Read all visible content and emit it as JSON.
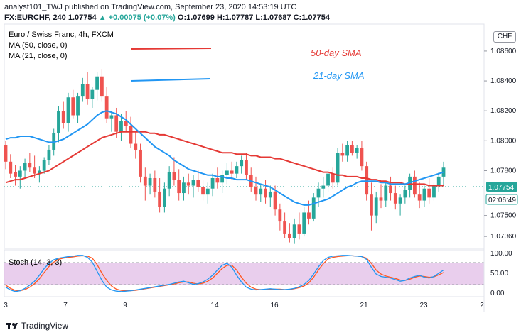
{
  "header": {
    "author": "analyst101_TWJ",
    "published": "published on TradingView.com, September 23, 2020 14:53:19 UTC"
  },
  "quote": {
    "symbol": "FX:EURCHF, 240",
    "last": "1.07754",
    "change": "▲ +0.00075 (+0.07%)",
    "o_label": "O:",
    "o": "1.07699",
    "h_label": "H:",
    "h": "1.07787",
    "l_label": "L:",
    "l": "1.07687",
    "c_label": "C:",
    "c": "1.07754"
  },
  "legend": {
    "instrument": "Euro / Swiss Franc, 4h, FXCM",
    "ma50": "MA (50, close, 0)",
    "ma21": "MA (21, close, 0)"
  },
  "annotations": {
    "sma50": "50-day SMA",
    "sma21": "21-day SMA"
  },
  "currency_badge": "CHF",
  "price_labels": {
    "last": "1.07754",
    "countdown": "02:06:49"
  },
  "stoch_label": "Stoch (14, 3, 3)",
  "footer": "TradingView",
  "colors": {
    "up": "#26a69a",
    "down": "#ef5350",
    "ma50": "#e53935",
    "ma21": "#2196f3",
    "stoch_k": "#2196f3",
    "stoch_d": "#ff5722",
    "stoch_band": "#e1bee7"
  },
  "chart_data": [
    {
      "type": "candlestick",
      "title": "Euro / Swiss Franc, 4h, FXCM",
      "x_tick_labels": [
        "3",
        "7",
        "9",
        "14",
        "16",
        "21",
        "23",
        "2"
      ],
      "y_tick_labels": [
        "1.08600",
        "1.08400",
        "1.08200",
        "1.08000",
        "1.07800",
        "1.07500",
        "1.07360"
      ],
      "ylim": [
        1.0728,
        1.0878
      ],
      "candles": [
        [
          1.0797,
          1.08,
          1.0781,
          1.0786
        ],
        [
          1.0786,
          1.0791,
          1.0775,
          1.0778
        ],
        [
          1.0779,
          1.0784,
          1.077,
          1.0776
        ],
        [
          1.0776,
          1.0783,
          1.0768,
          1.078
        ],
        [
          1.078,
          1.0788,
          1.0775,
          1.0785
        ],
        [
          1.0785,
          1.0792,
          1.0779,
          1.0782
        ],
        [
          1.0782,
          1.079,
          1.0775,
          1.0778
        ],
        [
          1.0778,
          1.0783,
          1.0772,
          1.078
        ],
        [
          1.078,
          1.0789,
          1.0778,
          1.0787
        ],
        [
          1.0787,
          1.0797,
          1.0784,
          1.0794
        ],
        [
          1.0794,
          1.0808,
          1.079,
          1.0805
        ],
        [
          1.0805,
          1.0823,
          1.0799,
          1.082
        ],
        [
          1.082,
          1.0826,
          1.0808,
          1.0812
        ],
        [
          1.0812,
          1.0832,
          1.0806,
          1.0829
        ],
        [
          1.0829,
          1.0834,
          1.0815,
          1.0817
        ],
        [
          1.0817,
          1.0832,
          1.0812,
          1.083
        ],
        [
          1.083,
          1.0842,
          1.0826,
          1.0838
        ],
        [
          1.0838,
          1.0846,
          1.0824,
          1.0828
        ],
        [
          1.0828,
          1.0836,
          1.0822,
          1.0834
        ],
        [
          1.0834,
          1.0846,
          1.0827,
          1.0843
        ],
        [
          1.0843,
          1.0848,
          1.0826,
          1.083
        ],
        [
          1.083,
          1.0836,
          1.0812,
          1.0815
        ],
        [
          1.0815,
          1.082,
          1.0806,
          1.0817
        ],
        [
          1.0817,
          1.0822,
          1.0802,
          1.0806
        ],
        [
          1.0806,
          1.0818,
          1.08,
          1.0813
        ],
        [
          1.0813,
          1.082,
          1.0806,
          1.081
        ],
        [
          1.081,
          1.0816,
          1.0795,
          1.0798
        ],
        [
          1.0798,
          1.0806,
          1.0788,
          1.0794
        ],
        [
          1.0794,
          1.0798,
          1.0772,
          1.0776
        ],
        [
          1.0776,
          1.0782,
          1.076,
          1.077
        ],
        [
          1.077,
          1.0778,
          1.0764,
          1.0775
        ],
        [
          1.0775,
          1.078,
          1.0762,
          1.0766
        ],
        [
          1.0766,
          1.0775,
          1.0752,
          1.0756
        ],
        [
          1.0756,
          1.0772,
          1.0752,
          1.0768
        ],
        [
          1.0768,
          1.0783,
          1.0763,
          1.0779
        ],
        [
          1.0779,
          1.0789,
          1.077,
          1.0774
        ],
        [
          1.0774,
          1.0781,
          1.076,
          1.0765
        ],
        [
          1.0765,
          1.0776,
          1.076,
          1.0772
        ],
        [
          1.0772,
          1.0778,
          1.0764,
          1.077
        ],
        [
          1.077,
          1.0777,
          1.0762,
          1.0774
        ],
        [
          1.0774,
          1.078,
          1.0766,
          1.0769
        ],
        [
          1.0769,
          1.0774,
          1.076,
          1.0764
        ],
        [
          1.0764,
          1.0772,
          1.0758,
          1.0768
        ],
        [
          1.0768,
          1.0778,
          1.0763,
          1.0775
        ],
        [
          1.0775,
          1.0782,
          1.0768,
          1.0772
        ],
        [
          1.0772,
          1.078,
          1.0765,
          1.0777
        ],
        [
          1.0777,
          1.0785,
          1.0771,
          1.078
        ],
        [
          1.078,
          1.0786,
          1.0774,
          1.0778
        ],
        [
          1.0778,
          1.0786,
          1.0775,
          1.0783
        ],
        [
          1.0783,
          1.079,
          1.0778,
          1.0787
        ],
        [
          1.0787,
          1.0792,
          1.0774,
          1.0777
        ],
        [
          1.0777,
          1.0782,
          1.0766,
          1.0769
        ],
        [
          1.0769,
          1.0776,
          1.076,
          1.0764
        ],
        [
          1.0764,
          1.0771,
          1.0759,
          1.0768
        ],
        [
          1.0768,
          1.0774,
          1.0758,
          1.0762
        ],
        [
          1.0762,
          1.077,
          1.0756,
          1.0766
        ],
        [
          1.0766,
          1.077,
          1.075,
          1.0754
        ],
        [
          1.0754,
          1.0758,
          1.074,
          1.0746
        ],
        [
          1.0746,
          1.0752,
          1.0735,
          1.0738
        ],
        [
          1.0738,
          1.0745,
          1.0732,
          1.0735
        ],
        [
          1.0735,
          1.0748,
          1.0731,
          1.0744
        ],
        [
          1.0744,
          1.0752,
          1.0734,
          1.0738
        ],
        [
          1.0738,
          1.0756,
          1.0736,
          1.0752
        ],
        [
          1.0752,
          1.076,
          1.0744,
          1.0748
        ],
        [
          1.0748,
          1.0765,
          1.0746,
          1.0762
        ],
        [
          1.0762,
          1.0772,
          1.0756,
          1.0768
        ],
        [
          1.0768,
          1.0776,
          1.0762,
          1.077
        ],
        [
          1.077,
          1.0781,
          1.0766,
          1.0778
        ],
        [
          1.0778,
          1.0782,
          1.0768,
          1.0772
        ],
        [
          1.0772,
          1.0795,
          1.077,
          1.0792
        ],
        [
          1.0792,
          1.0798,
          1.0786,
          1.079
        ],
        [
          1.079,
          1.08,
          1.0786,
          1.0797
        ],
        [
          1.0797,
          1.08,
          1.079,
          1.0792
        ],
        [
          1.0792,
          1.0797,
          1.0788,
          1.0795
        ],
        [
          1.0795,
          1.08,
          1.078,
          1.0783
        ],
        [
          1.0783,
          1.0786,
          1.076,
          1.0764
        ],
        [
          1.0764,
          1.0772,
          1.074,
          1.075
        ],
        [
          1.075,
          1.0766,
          1.0745,
          1.0762
        ],
        [
          1.0762,
          1.0771,
          1.0755,
          1.076
        ],
        [
          1.076,
          1.0773,
          1.0756,
          1.077
        ],
        [
          1.077,
          1.0776,
          1.076,
          1.0765
        ],
        [
          1.0765,
          1.077,
          1.0754,
          1.0758
        ],
        [
          1.0758,
          1.0764,
          1.075,
          1.0762
        ],
        [
          1.0762,
          1.077,
          1.0758,
          1.0767
        ],
        [
          1.0767,
          1.0778,
          1.0762,
          1.0776
        ],
        [
          1.0776,
          1.078,
          1.0762,
          1.0764
        ],
        [
          1.0764,
          1.0772,
          1.0755,
          1.076
        ],
        [
          1.076,
          1.077,
          1.0756,
          1.0768
        ],
        [
          1.0768,
          1.0775,
          1.0758,
          1.0762
        ],
        [
          1.0762,
          1.0772,
          1.076,
          1.077
        ],
        [
          1.077,
          1.0779,
          1.0766,
          1.0776
        ],
        [
          1.0776,
          1.0786,
          1.077,
          1.0782
        ]
      ],
      "ma50": [
        1.0772,
        1.0773,
        1.0774,
        1.0774,
        1.0775,
        1.0776,
        1.0777,
        1.0778,
        1.0779,
        1.078,
        1.0782,
        1.0784,
        1.0786,
        1.0788,
        1.079,
        1.0792,
        1.0794,
        1.0796,
        1.0798,
        1.08,
        1.0802,
        1.0803,
        1.0804,
        1.0805,
        1.0806,
        1.0806,
        1.0806,
        1.0806,
        1.0806,
        1.0806,
        1.0805,
        1.0805,
        1.0804,
        1.0804,
        1.0803,
        1.0802,
        1.0801,
        1.08,
        1.0799,
        1.0798,
        1.0797,
        1.0796,
        1.0795,
        1.0794,
        1.0793,
        1.0792,
        1.0792,
        1.0792,
        1.0791,
        1.0791,
        1.0791,
        1.079,
        1.079,
        1.0789,
        1.0789,
        1.0789,
        1.0788,
        1.0788,
        1.0787,
        1.0786,
        1.0785,
        1.0784,
        1.0783,
        1.0782,
        1.0781,
        1.078,
        1.0779,
        1.0779,
        1.0778,
        1.0777,
        1.0777,
        1.0776,
        1.0776,
        1.0776,
        1.0775,
        1.0775,
        1.0774,
        1.0774,
        1.0773,
        1.0773,
        1.0772,
        1.0772,
        1.0772,
        1.0771,
        1.0771,
        1.0771,
        1.0771,
        1.0771,
        1.077,
        1.077,
        1.077,
        1.077
      ],
      "ma21": [
        1.0801,
        1.0802,
        1.0802,
        1.0803,
        1.0803,
        1.0803,
        1.0802,
        1.0801,
        1.08,
        1.0799,
        1.0799,
        1.08,
        1.0801,
        1.0803,
        1.0805,
        1.0807,
        1.0809,
        1.0811,
        1.0814,
        1.0817,
        1.0819,
        1.082,
        1.0819,
        1.0818,
        1.0816,
        1.0814,
        1.0811,
        1.0808,
        1.0805,
        1.0802,
        1.0799,
        1.0796,
        1.0794,
        1.0792,
        1.079,
        1.0787,
        1.0785,
        1.0783,
        1.0781,
        1.078,
        1.0779,
        1.0778,
        1.0777,
        1.0777,
        1.0776,
        1.0776,
        1.0775,
        1.0775,
        1.0774,
        1.0774,
        1.0774,
        1.0773,
        1.0772,
        1.0771,
        1.077,
        1.0769,
        1.0767,
        1.0765,
        1.0763,
        1.0761,
        1.0759,
        1.0758,
        1.0757,
        1.0757,
        1.0758,
        1.0759,
        1.076,
        1.0761,
        1.0763,
        1.0765,
        1.0767,
        1.0769,
        1.077,
        1.0772,
        1.0773,
        1.0773,
        1.0773,
        1.0773,
        1.0772,
        1.0772,
        1.0771,
        1.0771,
        1.0771,
        1.0771,
        1.0772,
        1.0773,
        1.0774,
        1.0775,
        1.0776,
        1.0777,
        1.0778,
        1.0779
      ]
    },
    {
      "type": "line",
      "title": "Stoch (14, 3, 3)",
      "y_tick_labels": [
        "100.00",
        "50.00",
        "0.00"
      ],
      "ylim": [
        0,
        100
      ],
      "bands": [
        20,
        80
      ],
      "series": [
        {
          "name": "%K",
          "values": [
            15,
            8,
            4,
            6,
            12,
            20,
            30,
            45,
            62,
            75,
            84,
            88,
            90,
            92,
            93,
            95,
            95,
            90,
            78,
            55,
            32,
            15,
            8,
            5,
            4,
            5,
            6,
            8,
            10,
            12,
            14,
            16,
            18,
            20,
            22,
            25,
            28,
            30,
            26,
            22,
            24,
            28,
            35,
            45,
            58,
            70,
            75,
            65,
            45,
            28,
            15,
            10,
            8,
            9,
            10,
            11,
            10,
            9,
            9,
            10,
            12,
            16,
            22,
            32,
            48,
            66,
            82,
            90,
            93,
            94,
            95,
            95,
            94,
            93,
            92,
            85,
            65,
            48,
            42,
            40,
            38,
            34,
            30,
            32,
            38,
            42,
            45,
            40,
            38,
            42,
            50,
            58
          ]
        },
        {
          "name": "%D",
          "values": [
            20,
            12,
            7,
            6,
            9,
            15,
            24,
            36,
            52,
            67,
            78,
            85,
            88,
            90,
            91,
            93,
            94,
            93,
            88,
            72,
            50,
            32,
            18,
            10,
            7,
            6,
            6,
            7,
            9,
            11,
            13,
            15,
            17,
            19,
            21,
            23,
            26,
            28,
            28,
            25,
            23,
            25,
            30,
            38,
            50,
            62,
            70,
            70,
            58,
            40,
            25,
            15,
            10,
            9,
            9,
            10,
            10,
            10,
            9,
            9,
            11,
            14,
            18,
            26,
            40,
            58,
            74,
            86,
            90,
            92,
            93,
            94,
            94,
            93,
            92,
            88,
            75,
            58,
            48,
            43,
            40,
            37,
            33,
            32,
            35,
            40,
            43,
            42,
            40,
            41,
            46,
            52
          ]
        }
      ]
    }
  ]
}
